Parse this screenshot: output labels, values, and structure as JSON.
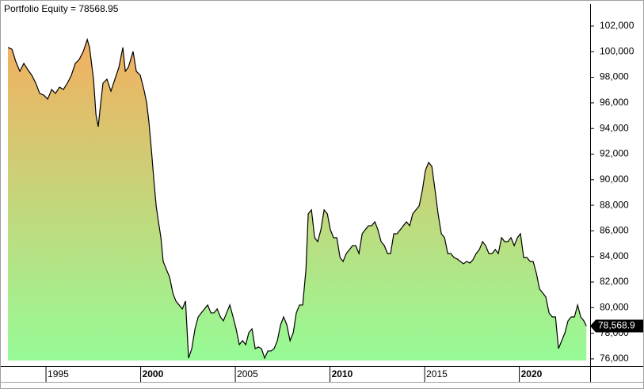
{
  "chart_data": {
    "type": "area",
    "title": "Portfolio Equity = 78568.95",
    "last_value_label": "78,568.9",
    "series": [
      {
        "name": "Portfolio Equity",
        "color": "#000000",
        "fill_gradient": [
          "#f2b060",
          "#96fb96"
        ],
        "x": [
          1992.99,
          1993.2,
          1993.41,
          1993.62,
          1993.83,
          1994.04,
          1994.25,
          1994.46,
          1994.67,
          1994.88,
          1995.09,
          1995.3,
          1995.5,
          1995.71,
          1995.92,
          1996.13,
          1996.34,
          1996.55,
          1996.76,
          1996.97,
          1997.18,
          1997.3,
          1997.51,
          1997.64,
          1997.76,
          1997.89,
          1998.01,
          1998.22,
          1998.43,
          1998.64,
          1998.85,
          1999.06,
          1999.19,
          1999.35,
          1999.6,
          1999.77,
          1999.98,
          2000.19,
          2000.32,
          2000.44,
          2000.57,
          2000.69,
          2000.82,
          2000.94,
          2001.07,
          2001.19,
          2001.36,
          2001.53,
          2001.7,
          2001.86,
          2002.03,
          2002.2,
          2002.37,
          2002.53,
          2002.7,
          2002.87,
          2003.04,
          2003.2,
          2003.37,
          2003.54,
          2003.71,
          2003.87,
          2004.04,
          2004.21,
          2004.37,
          2004.54,
          2004.71,
          2004.88,
          2005.04,
          2005.21,
          2005.38,
          2005.55,
          2005.71,
          2005.88,
          2006.05,
          2006.22,
          2006.38,
          2006.55,
          2006.72,
          2006.89,
          2007.05,
          2007.22,
          2007.39,
          2007.55,
          2007.72,
          2007.89,
          2008.06,
          2008.22,
          2008.39,
          2008.56,
          2008.73,
          2008.85,
          2009.02,
          2009.19,
          2009.35,
          2009.52,
          2009.69,
          2009.86,
          2010.02,
          2010.19,
          2010.36,
          2010.53,
          2010.69,
          2010.86,
          2011.03,
          2011.19,
          2011.36,
          2011.53,
          2011.7,
          2011.86,
          2012.03,
          2012.2,
          2012.37,
          2012.53,
          2012.7,
          2012.87,
          2013.04,
          2013.2,
          2013.37,
          2013.54,
          2013.71,
          2013.87,
          2014.04,
          2014.21,
          2014.37,
          2014.54,
          2014.71,
          2014.88,
          2015.04,
          2015.21,
          2015.38,
          2015.55,
          2015.71,
          2015.88,
          2016.05,
          2016.22,
          2016.38,
          2016.55,
          2016.72,
          2016.89,
          2017.05,
          2017.22,
          2017.39,
          2017.55,
          2017.72,
          2017.89,
          2018.06,
          2018.22,
          2018.39,
          2018.56,
          2018.73,
          2018.89,
          2019.06,
          2019.23,
          2019.4,
          2019.56,
          2019.73,
          2019.9,
          2020.06,
          2020.23,
          2020.4,
          2020.57,
          2020.73,
          2020.9,
          2021.07,
          2021.24,
          2021.4,
          2021.57,
          2021.74,
          2021.91,
          2022.07,
          2022.24,
          2022.41,
          2022.57,
          2022.74,
          2022.91,
          2023.08,
          2023.24,
          2023.41,
          2023.54
        ],
        "values": [
          100330,
          100200,
          99210,
          98470,
          99090,
          98590,
          98160,
          97540,
          96740,
          96610,
          96300,
          97050,
          96740,
          97230,
          97050,
          97540,
          98160,
          99090,
          99400,
          100020,
          100950,
          100330,
          97850,
          95070,
          94140,
          95990,
          97540,
          97850,
          96920,
          97850,
          98780,
          100330,
          98470,
          98780,
          100020,
          98470,
          98160,
          96920,
          95990,
          94450,
          92280,
          90110,
          87950,
          86710,
          85470,
          83610,
          82990,
          82380,
          81140,
          80520,
          80210,
          79900,
          80520,
          76060,
          76800,
          78350,
          79280,
          79590,
          79900,
          80210,
          79590,
          79590,
          79900,
          79280,
          78970,
          79590,
          80210,
          79280,
          78350,
          77110,
          77420,
          77110,
          78040,
          78350,
          76800,
          76930,
          76800,
          76060,
          76620,
          76620,
          76800,
          77420,
          78660,
          79280,
          78660,
          77420,
          78040,
          79590,
          80210,
          80210,
          82990,
          87330,
          87640,
          85470,
          85160,
          86090,
          87640,
          87330,
          86090,
          85470,
          85470,
          83920,
          83610,
          84230,
          84540,
          84850,
          84850,
          84230,
          85780,
          86090,
          86400,
          86400,
          86710,
          86090,
          85160,
          84850,
          84230,
          84230,
          85780,
          85780,
          86090,
          86400,
          86710,
          86400,
          87330,
          87640,
          87950,
          89180,
          90730,
          91350,
          91040,
          89180,
          87330,
          85780,
          85470,
          84230,
          84230,
          83920,
          83800,
          83610,
          83430,
          83610,
          83490,
          83740,
          84230,
          84540,
          85160,
          84850,
          84230,
          84230,
          84540,
          84230,
          85470,
          85160,
          85160,
          85470,
          84850,
          85470,
          85780,
          83920,
          83920,
          83610,
          83610,
          82690,
          81450,
          81140,
          80830,
          79590,
          79280,
          79280,
          76800,
          77420,
          78040,
          78970,
          79280,
          79280,
          80210,
          79280,
          78970,
          78568.95
        ]
      }
    ],
    "xlim": [
      1992.78,
      2023.74
    ],
    "xticks": [
      1995,
      2000,
      2005,
      2010,
      2015,
      2020
    ],
    "ylim": [
      75440,
      103730
    ],
    "yticks": [
      {
        "value": 76000,
        "label": "76,000"
      },
      {
        "value": 78000,
        "label": "78,000"
      },
      {
        "value": 80000,
        "label": "80,000"
      },
      {
        "value": 82000,
        "label": "82,000"
      },
      {
        "value": 84000,
        "label": "84,000"
      },
      {
        "value": 86000,
        "label": "86,000"
      },
      {
        "value": 88000,
        "label": "88,000"
      },
      {
        "value": 90000,
        "label": "90,000"
      },
      {
        "value": 92000,
        "label": "92,000"
      },
      {
        "value": 94000,
        "label": "94,000"
      },
      {
        "value": 96000,
        "label": "96,000"
      },
      {
        "value": 98000,
        "label": "98,000"
      },
      {
        "value": 100000,
        "label": "100,000"
      },
      {
        "value": 102000,
        "label": "102,000"
      }
    ],
    "grid": false
  }
}
